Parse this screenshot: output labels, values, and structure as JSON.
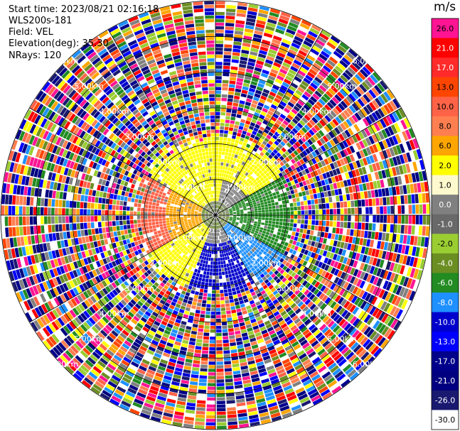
{
  "header": {
    "start_time": "Start time: 2023/08/21 02:16:18",
    "instrument": "WLS200s-181",
    "field": "Field: VEL",
    "elevation": "Elevation(deg): 35.30",
    "nrays": "NRays: 120"
  },
  "chart_data": {
    "type": "polar_ppi",
    "field": "VEL",
    "unit": "m/s",
    "elevation_deg": 35.3,
    "n_rays": 120,
    "max_range_km": 6.0,
    "range_rings_km": [
      1,
      2,
      3,
      4,
      5,
      6
    ],
    "range_ring_labels": [
      "1.00km",
      "2.00km",
      "3.00km",
      "4.00km",
      "5.00km",
      "6.00km"
    ],
    "colorbar": {
      "ticks": [
        "26.0",
        "21.0",
        "17.0",
        "13.0",
        "10.0",
        "8.0",
        "6.0",
        "2.0",
        "1.0",
        "0.0",
        "-1.0",
        "-2.0",
        "-4.0",
        "-6.0",
        "-8.0",
        "-10.0",
        "-13.0",
        "-17.0",
        "-21.0",
        "-26.0",
        "-30.0"
      ],
      "colors": [
        "#ff1493",
        "#ff0000",
        "#ff2a2a",
        "#ff4500",
        "#ff6347",
        "#ff7f50",
        "#ffa500",
        "#ffff00",
        "#fffacd",
        "#808080",
        "#696969",
        "#9acd32",
        "#6b8e23",
        "#228b22",
        "#1e90ff",
        "#0000cd",
        "#0000ff",
        "#00008b",
        "#000080",
        "#191970",
        "#ffffff"
      ]
    },
    "pattern": {
      "inner_region_max_km": 2.3,
      "description_colors": {
        "northwest": "#ff6347",
        "west": "#ffa500",
        "north_center": "#ffff00",
        "east": "#228b22",
        "southeast": "#1e90ff",
        "south": "#0000cd"
      }
    }
  }
}
